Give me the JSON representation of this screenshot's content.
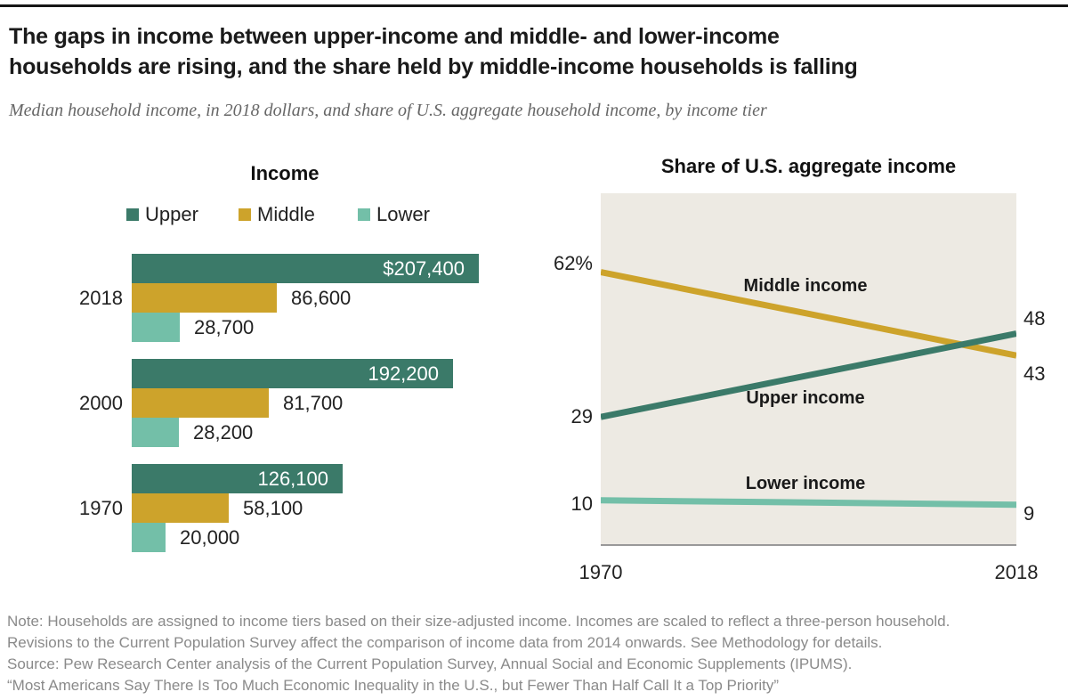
{
  "header": {
    "title_line1": "The gaps in income between upper-income and middle- and lower-income",
    "title_line2": "households are rising, and the share held by middle-income households is falling",
    "subtitle": "Median household income, in 2018 dollars, and share of U.S. aggregate household income, by income tier"
  },
  "legend": {
    "items": [
      {
        "label": "Upper",
        "color": "#3b7a69"
      },
      {
        "label": "Middle",
        "color": "#cda32b"
      },
      {
        "label": "Lower",
        "color": "#73bfa8"
      }
    ]
  },
  "chart_data": [
    {
      "type": "bar",
      "title": "Income",
      "orientation": "horizontal",
      "categories": [
        "2018",
        "2000",
        "1970"
      ],
      "xlim": [
        0,
        207400
      ],
      "series": [
        {
          "name": "Upper",
          "color": "#3b7a69",
          "values": [
            207400,
            192200,
            126100
          ],
          "labels": [
            "$207,400",
            "192,200",
            "126,100"
          ],
          "label_position": "inside"
        },
        {
          "name": "Middle",
          "color": "#cda32b",
          "values": [
            86600,
            81700,
            58100
          ],
          "labels": [
            "86,600",
            "81,700",
            "58,100"
          ],
          "label_position": "outside"
        },
        {
          "name": "Lower",
          "color": "#73bfa8",
          "values": [
            28700,
            28200,
            20000
          ],
          "labels": [
            "28,700",
            "28,200",
            "20,000"
          ],
          "label_position": "outside"
        }
      ]
    },
    {
      "type": "line",
      "title": "Share of U.S. aggregate income",
      "x": [
        1970,
        2018
      ],
      "x_tick_labels": [
        "1970",
        "2018"
      ],
      "ylim": [
        0,
        80
      ],
      "plot_bg": "#edeae3",
      "series": [
        {
          "name": "Middle income",
          "color": "#cda32b",
          "values": [
            62,
            43
          ],
          "start_label": "62%",
          "end_label": "43"
        },
        {
          "name": "Upper income",
          "color": "#3b7a69",
          "values": [
            29,
            48
          ],
          "start_label": "29",
          "end_label": "48"
        },
        {
          "name": "Lower income",
          "color": "#73bfa8",
          "values": [
            10,
            9
          ],
          "start_label": "10",
          "end_label": "9"
        }
      ]
    }
  ],
  "footer": {
    "lines": [
      "Note: Households are assigned to income tiers based on their size-adjusted income. Incomes are scaled to reflect a three-person household.",
      "Revisions to the Current Population Survey affect the comparison of income data from 2014 onwards. See Methodology for details.",
      "Source: Pew Research Center analysis of the Current Population Survey, Annual Social and Economic Supplements (IPUMS).",
      "“Most Americans Say There Is Too Much Economic Inequality in the U.S., but Fewer Than Half Call It a Top Priority”"
    ]
  }
}
